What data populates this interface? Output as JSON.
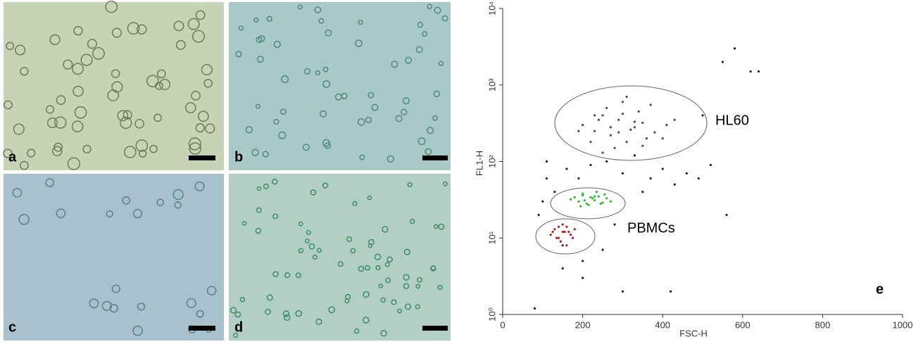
{
  "panels": [
    {
      "label": "a"
    },
    {
      "label": "b"
    },
    {
      "label": "c"
    },
    {
      "label": "d"
    }
  ],
  "chart_data": {
    "type": "scatter",
    "panel_label": "e",
    "x_label": "FSC-H",
    "y_label": "FL1-H",
    "xlim": [
      0,
      1000
    ],
    "xticks": [
      0,
      200,
      400,
      600,
      800,
      1000
    ],
    "ylim": [
      1,
      10000
    ],
    "ylog": true,
    "yticks": [
      {
        "value": 1,
        "label": "10⁰"
      },
      {
        "value": 10,
        "label": "10¹"
      },
      {
        "value": 100,
        "label": "10²"
      },
      {
        "value": 1000,
        "label": "10³"
      },
      {
        "value": 10000,
        "label": "10⁴"
      }
    ],
    "annotations": [
      "HL60",
      "PBMCs"
    ],
    "series": [
      {
        "color": "#6b3a5e",
        "x": [
          200,
          230,
          250,
          270,
          290,
          310,
          330,
          350,
          380,
          410,
          260,
          300,
          340,
          220,
          280,
          320,
          360,
          240,
          270,
          300,
          190,
          430,
          370,
          250,
          310,
          290,
          350,
          230,
          400,
          330
        ],
        "y": [
          300,
          250,
          400,
          220,
          350,
          180,
          280,
          320,
          240,
          300,
          500,
          600,
          450,
          180,
          150,
          260,
          200,
          350,
          280,
          420,
          250,
          350,
          550,
          130,
          700,
          240,
          160,
          400,
          200,
          330
        ]
      },
      {
        "color": "#22c02a",
        "x": [
          170,
          190,
          200,
          210,
          220,
          230,
          240,
          250,
          260,
          200,
          215,
          235,
          180,
          255,
          270,
          225,
          205,
          245,
          195,
          230
        ],
        "y": [
          32,
          30,
          36,
          28,
          34,
          31,
          35,
          29,
          33,
          38,
          27,
          40,
          34,
          37,
          30,
          33,
          31,
          28,
          26,
          35
        ]
      },
      {
        "color": "#c0161c",
        "x": [
          120,
          130,
          140,
          150,
          160,
          170,
          180,
          145,
          155,
          135,
          165,
          150,
          175,
          125,
          140,
          160
        ],
        "y": [
          11,
          13,
          10,
          12,
          14,
          11,
          13,
          9,
          12,
          10,
          12,
          15,
          10,
          12,
          14,
          8
        ]
      },
      {
        "color": "#222222",
        "x": [
          100,
          110,
          130,
          160,
          190,
          220,
          260,
          300,
          330,
          370,
          400,
          430,
          460,
          490,
          520,
          550,
          580,
          620,
          90,
          150,
          200,
          280,
          350,
          110,
          300,
          420,
          560,
          640,
          80,
          250,
          500,
          150,
          200
        ],
        "y": [
          30,
          60,
          40,
          80,
          60,
          90,
          100,
          70,
          120,
          60,
          80,
          50,
          70,
          60,
          90,
          2000,
          3000,
          1500,
          20,
          8,
          5,
          15,
          40,
          100,
          2,
          2,
          20,
          1500,
          1.2,
          7,
          400,
          4,
          3
        ]
      }
    ]
  }
}
